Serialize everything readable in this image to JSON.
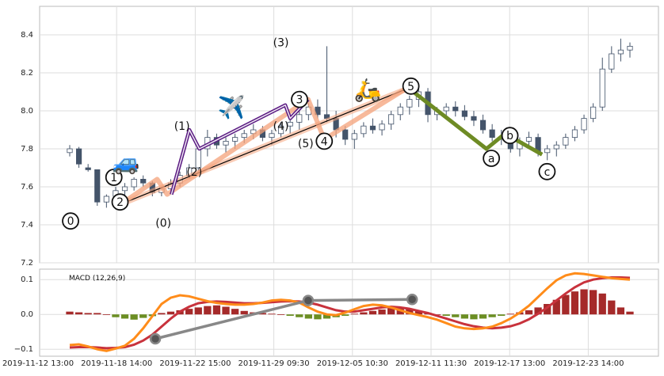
{
  "chart_data": {
    "type": "candlestick",
    "x_tick_labels": [
      "2019-11-12 13:00",
      "2019-11-18 14:00",
      "2019-11-22 15:00",
      "2019-11-29 09:30",
      "2019-12-05 10:30",
      "2019-12-11 11:30",
      "2019-12-17 13:00",
      "2019-12-23 14:00"
    ],
    "price_panel": {
      "ylim": [
        7.2,
        8.55
      ],
      "yticks": [
        7.2,
        7.4,
        7.6,
        7.8,
        8.0,
        8.2,
        8.4
      ],
      "ytick_labels": [
        "7.2",
        "7.4",
        "7.6",
        "7.8",
        "8.0",
        "8.2",
        "8.4"
      ],
      "candles": [
        [
          7.78,
          7.82,
          7.76,
          7.8
        ],
        [
          7.8,
          7.81,
          7.7,
          7.72
        ],
        [
          7.7,
          7.72,
          7.68,
          7.69
        ],
        [
          7.69,
          7.69,
          7.5,
          7.52
        ],
        [
          7.52,
          7.56,
          7.49,
          7.55
        ],
        [
          7.55,
          7.6,
          7.53,
          7.58
        ],
        [
          7.58,
          7.62,
          7.55,
          7.6
        ],
        [
          7.6,
          7.65,
          7.58,
          7.64
        ],
        [
          7.64,
          7.66,
          7.6,
          7.62
        ],
        [
          7.62,
          7.63,
          7.55,
          7.57
        ],
        [
          7.57,
          7.6,
          7.55,
          7.59
        ],
        [
          7.59,
          7.64,
          7.57,
          7.62
        ],
        [
          7.62,
          7.68,
          7.6,
          7.66
        ],
        [
          7.66,
          7.72,
          7.64,
          7.7
        ],
        [
          7.7,
          7.82,
          7.68,
          7.8
        ],
        [
          7.8,
          7.9,
          7.76,
          7.86
        ],
        [
          7.86,
          7.88,
          7.8,
          7.82
        ],
        [
          7.82,
          7.86,
          7.78,
          7.84
        ],
        [
          7.84,
          7.88,
          7.8,
          7.86
        ],
        [
          7.86,
          7.9,
          7.83,
          7.88
        ],
        [
          7.88,
          7.93,
          7.85,
          7.9
        ],
        [
          7.9,
          7.92,
          7.84,
          7.86
        ],
        [
          7.86,
          7.9,
          7.82,
          7.88
        ],
        [
          7.88,
          7.94,
          7.86,
          7.92
        ],
        [
          7.92,
          7.96,
          7.88,
          7.94
        ],
        [
          7.94,
          8.0,
          7.9,
          7.98
        ],
        [
          7.98,
          8.04,
          7.95,
          8.02
        ],
        [
          8.02,
          8.06,
          7.96,
          7.98
        ],
        [
          7.98,
          8.34,
          7.94,
          7.96
        ],
        [
          7.96,
          8.0,
          7.86,
          7.9
        ],
        [
          7.9,
          7.92,
          7.82,
          7.85
        ],
        [
          7.85,
          7.9,
          7.8,
          7.88
        ],
        [
          7.88,
          7.94,
          7.86,
          7.92
        ],
        [
          7.92,
          7.96,
          7.88,
          7.9
        ],
        [
          7.9,
          7.95,
          7.87,
          7.93
        ],
        [
          7.93,
          8.0,
          7.9,
          7.98
        ],
        [
          7.98,
          8.04,
          7.95,
          8.02
        ],
        [
          8.02,
          8.08,
          7.98,
          8.06
        ],
        [
          8.06,
          8.12,
          8.02,
          8.1
        ],
        [
          8.1,
          8.12,
          7.94,
          7.98
        ],
        [
          7.98,
          8.02,
          7.95,
          8.0
        ],
        [
          8.0,
          8.04,
          7.96,
          8.02
        ],
        [
          8.02,
          8.05,
          7.97,
          8.0
        ],
        [
          8.0,
          8.03,
          7.95,
          7.97
        ],
        [
          7.97,
          8.0,
          7.92,
          7.95
        ],
        [
          7.95,
          7.98,
          7.88,
          7.9
        ],
        [
          7.9,
          7.93,
          7.84,
          7.86
        ],
        [
          7.86,
          7.9,
          7.82,
          7.85
        ],
        [
          7.85,
          7.88,
          7.78,
          7.8
        ],
        [
          7.8,
          7.86,
          7.76,
          7.84
        ],
        [
          7.84,
          7.89,
          7.8,
          7.86
        ],
        [
          7.86,
          7.88,
          7.76,
          7.78
        ],
        [
          7.78,
          7.82,
          7.74,
          7.8
        ],
        [
          7.8,
          7.84,
          7.76,
          7.82
        ],
        [
          7.82,
          7.88,
          7.8,
          7.86
        ],
        [
          7.86,
          7.92,
          7.84,
          7.9
        ],
        [
          7.9,
          7.98,
          7.88,
          7.96
        ],
        [
          7.96,
          8.04,
          7.94,
          8.02
        ],
        [
          8.02,
          8.28,
          8.0,
          8.22
        ],
        [
          8.22,
          8.34,
          8.2,
          8.3
        ],
        [
          8.3,
          8.38,
          8.26,
          8.32
        ],
        [
          8.32,
          8.36,
          8.28,
          8.34
        ]
      ],
      "wave_labels": [
        {
          "text": "0",
          "x": 0.05,
          "y": 7.42,
          "circled": true
        },
        {
          "text": "1",
          "x": 0.12,
          "y": 7.65,
          "circled": true
        },
        {
          "text": "2",
          "x": 0.13,
          "y": 7.52,
          "circled": true
        },
        {
          "text": "3",
          "x": 0.42,
          "y": 8.06,
          "circled": true
        },
        {
          "text": "4",
          "x": 0.46,
          "y": 7.84,
          "circled": true
        },
        {
          "text": "5",
          "x": 0.6,
          "y": 8.13,
          "circled": true
        },
        {
          "text": "a",
          "x": 0.73,
          "y": 7.75,
          "circled": true
        },
        {
          "text": "b",
          "x": 0.76,
          "y": 7.87,
          "circled": true
        },
        {
          "text": "c",
          "x": 0.82,
          "y": 7.68,
          "circled": true
        },
        {
          "text": "(0)",
          "x": 0.2,
          "y": 7.41,
          "circled": false
        },
        {
          "text": "(1)",
          "x": 0.23,
          "y": 7.92,
          "circled": false
        },
        {
          "text": "(2)",
          "x": 0.25,
          "y": 7.68,
          "circled": false
        },
        {
          "text": "(3)",
          "x": 0.39,
          "y": 8.36,
          "circled": false
        },
        {
          "text": "(4)",
          "x": 0.39,
          "y": 7.92,
          "circled": false
        },
        {
          "text": "(5)",
          "x": 0.43,
          "y": 7.83,
          "circled": false
        }
      ],
      "emoji_markers": [
        {
          "name": "car",
          "glyph": "🚙",
          "x": 0.14,
          "y": 7.69
        },
        {
          "name": "airplane",
          "glyph": "✈️",
          "x": 0.31,
          "y": 7.98
        },
        {
          "name": "scooter",
          "glyph": "🛵",
          "x": 0.53,
          "y": 8.07
        }
      ]
    },
    "macd_panel": {
      "title": "MACD (12,26,9)",
      "ylim": [
        -0.12,
        0.13
      ],
      "yticks": [
        -0.1,
        0.0,
        0.1
      ],
      "ytick_labels": [
        "−0.1",
        "0.0",
        "0.1"
      ],
      "histogram": [
        0.008,
        0.006,
        0.004,
        0.004,
        0.0,
        -0.008,
        -0.012,
        -0.015,
        -0.01,
        -0.005,
        0.004,
        0.008,
        0.012,
        0.016,
        0.02,
        0.024,
        0.026,
        0.022,
        0.016,
        0.01,
        0.006,
        0.004,
        0.002,
        0.0,
        -0.004,
        -0.008,
        -0.012,
        -0.014,
        -0.012,
        -0.008,
        -0.004,
        0.002,
        0.006,
        0.01,
        0.014,
        0.018,
        0.02,
        0.016,
        0.01,
        0.004,
        0.0,
        -0.004,
        -0.008,
        -0.012,
        -0.014,
        -0.012,
        -0.008,
        -0.004,
        0.002,
        0.006,
        0.012,
        0.02,
        0.03,
        0.042,
        0.056,
        0.066,
        0.072,
        0.07,
        0.06,
        0.04,
        0.02,
        0.008
      ],
      "macd_line": [
        -0.088,
        -0.086,
        -0.092,
        -0.1,
        -0.105,
        -0.098,
        -0.09,
        -0.07,
        -0.04,
        -0.005,
        0.03,
        0.048,
        0.055,
        0.052,
        0.045,
        0.038,
        0.033,
        0.03,
        0.028,
        0.028,
        0.03,
        0.034,
        0.04,
        0.042,
        0.04,
        0.034,
        0.02,
        0.008,
        0.0,
        -0.002,
        0.005,
        0.015,
        0.024,
        0.028,
        0.026,
        0.02,
        0.012,
        0.004,
        -0.002,
        -0.008,
        -0.015,
        -0.025,
        -0.035,
        -0.04,
        -0.042,
        -0.04,
        -0.035,
        -0.025,
        -0.012,
        0.005,
        0.025,
        0.05,
        0.075,
        0.098,
        0.112,
        0.118,
        0.116,
        0.112,
        0.108,
        0.104,
        0.102,
        0.1
      ],
      "signal_line": [
        -0.095,
        -0.094,
        -0.094,
        -0.095,
        -0.097,
        -0.096,
        -0.094,
        -0.087,
        -0.075,
        -0.058,
        -0.035,
        -0.012,
        0.008,
        0.022,
        0.032,
        0.036,
        0.037,
        0.036,
        0.034,
        0.032,
        0.032,
        0.033,
        0.035,
        0.037,
        0.038,
        0.037,
        0.034,
        0.028,
        0.02,
        0.012,
        0.008,
        0.008,
        0.012,
        0.016,
        0.02,
        0.022,
        0.02,
        0.016,
        0.01,
        0.004,
        -0.004,
        -0.012,
        -0.02,
        -0.028,
        -0.034,
        -0.038,
        -0.04,
        -0.038,
        -0.034,
        -0.026,
        -0.014,
        0.002,
        0.02,
        0.04,
        0.06,
        0.078,
        0.092,
        0.1,
        0.104,
        0.106,
        0.106,
        0.105
      ],
      "divergence_points": [
        {
          "x": 0.187,
          "y": -0.07
        },
        {
          "x": 0.434,
          "y": 0.04
        },
        {
          "x": 0.602,
          "y": 0.043
        }
      ]
    },
    "overlay_lines": [
      {
        "name": "trendline-black",
        "points": [
          [
            0.132,
            7.51
          ],
          [
            0.589,
            8.11
          ]
        ],
        "color": "#000000",
        "glow": "#f4a27a"
      },
      {
        "name": "wave-salmon",
        "points": [
          [
            0.132,
            7.51
          ],
          [
            0.19,
            7.64
          ],
          [
            0.206,
            7.56
          ],
          [
            0.434,
            8.06
          ],
          [
            0.46,
            7.85
          ],
          [
            0.589,
            8.11
          ]
        ],
        "color": "#f4a27a"
      },
      {
        "name": "wave-purple",
        "points": [
          [
            0.213,
            7.56
          ],
          [
            0.242,
            7.9
          ],
          [
            0.258,
            7.8
          ],
          [
            0.397,
            8.03
          ],
          [
            0.405,
            7.96
          ],
          [
            0.434,
            8.06
          ]
        ],
        "color": "#5a1a82"
      },
      {
        "name": "wave-green",
        "points": [
          [
            0.6,
            8.11
          ],
          [
            0.722,
            7.8
          ],
          [
            0.752,
            7.88
          ],
          [
            0.812,
            7.77
          ]
        ],
        "color": "#6e8b24"
      }
    ],
    "colors": {
      "candle": "#44546a",
      "hist_up": "#a52a2a",
      "hist_down": "#6b8e23",
      "macd": "#ff8c1a",
      "signal": "#c8323c",
      "divergence": "#888888",
      "grid": "#dddddd",
      "frame": "#bbbbbb"
    }
  }
}
